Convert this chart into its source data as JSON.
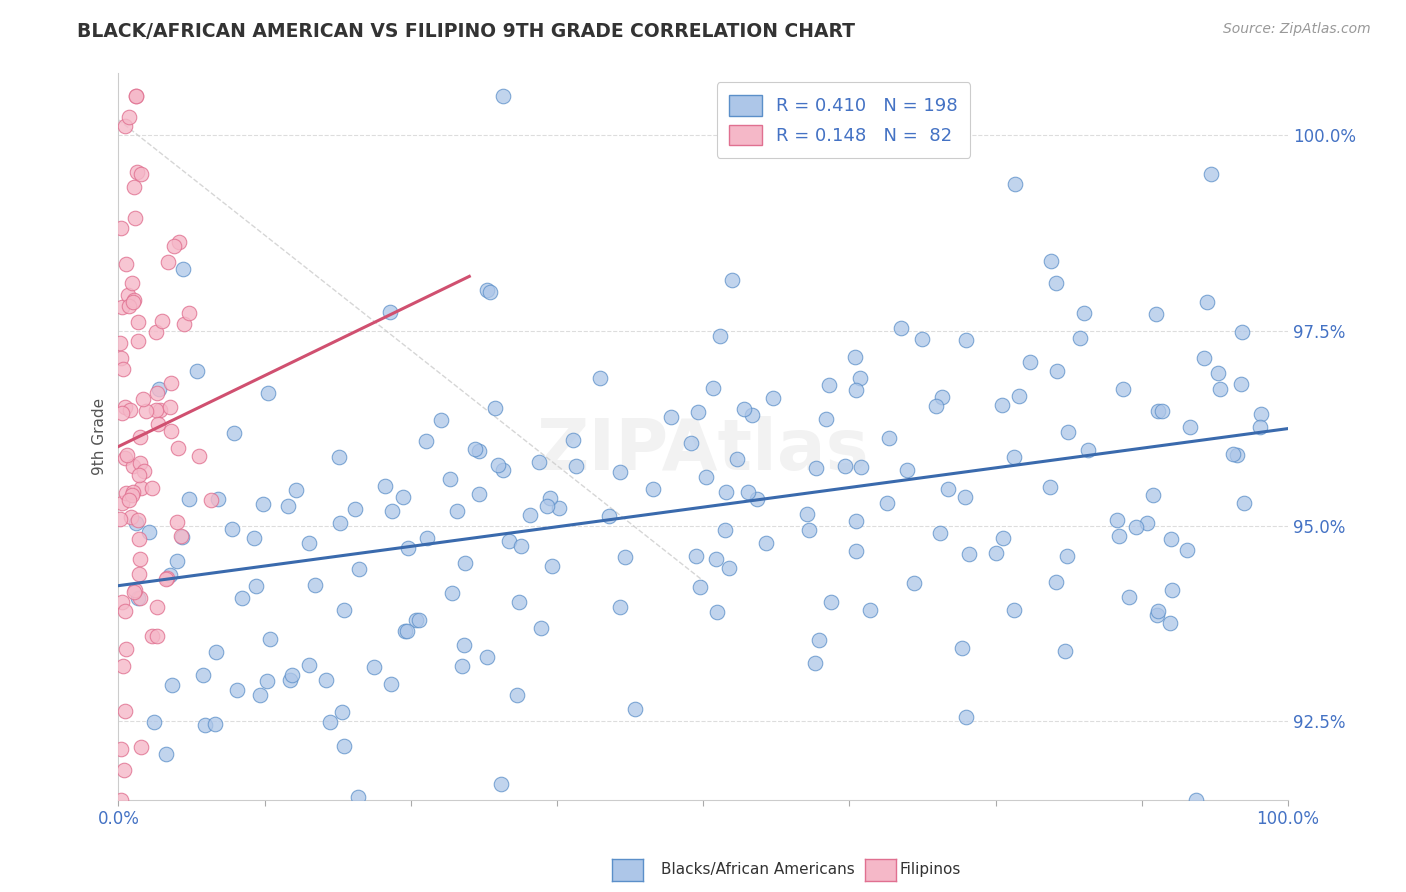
{
  "title": "BLACK/AFRICAN AMERICAN VS FILIPINO 9TH GRADE CORRELATION CHART",
  "source": "Source: ZipAtlas.com",
  "ylabel": "9th Grade",
  "xlim": [
    0.0,
    1.0
  ],
  "ylim": [
    0.915,
    1.008
  ],
  "yticks": [
    0.925,
    0.95,
    0.975,
    1.0
  ],
  "ytick_labels": [
    "92.5%",
    "95.0%",
    "97.5%",
    "100.0%"
  ],
  "xticks": [
    0.0,
    0.125,
    0.25,
    0.375,
    0.5,
    0.625,
    0.75,
    0.875,
    1.0
  ],
  "blue_R": 0.41,
  "blue_N": 198,
  "pink_R": 0.148,
  "pink_N": 82,
  "blue_fill_color": "#adc6e8",
  "blue_edge_color": "#5b8fc9",
  "pink_fill_color": "#f5b8c8",
  "pink_edge_color": "#e07090",
  "blue_line_color": "#3a6aad",
  "pink_line_color": "#d05070",
  "ref_line_color": "#cccccc",
  "legend_blue_label": "Blacks/African Americans",
  "legend_pink_label": "Filipinos",
  "background_color": "#ffffff",
  "grid_color": "#dddddd",
  "title_color": "#333333",
  "source_color": "#999999",
  "legend_val_color": "#4472c4",
  "watermark_color": "#cccccc",
  "blue_seed": 42,
  "pink_seed": 123
}
